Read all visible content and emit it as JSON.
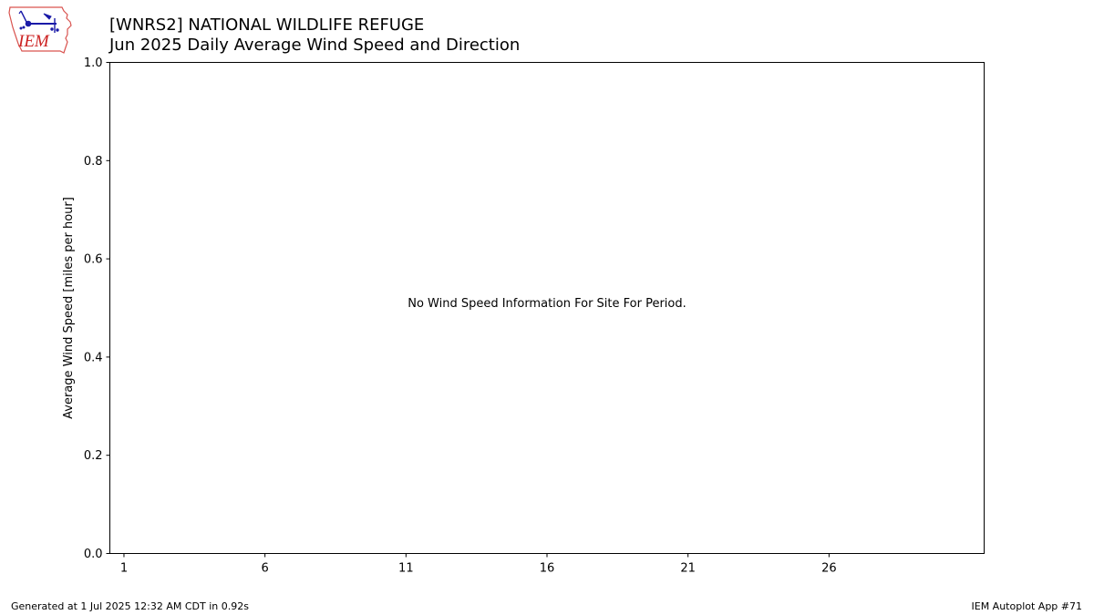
{
  "header": {
    "title": "[WNRS2] NATIONAL WILDLIFE REFUGE",
    "subtitle": "Jun 2025 Daily Average Wind Speed and Direction"
  },
  "logo": {
    "text": "IEM",
    "icon": "iem-weather-station-logo-icon",
    "colors": {
      "outline": "#d9534f",
      "station": "#1a1aa8",
      "text": "#cc2222"
    }
  },
  "footer": {
    "generated": "Generated at 1 Jul 2025 12:32 AM CDT in 0.92s",
    "app": "IEM Autoplot App #71"
  },
  "chart_data": {
    "type": "bar",
    "title": "[WNRS2] NATIONAL WILDLIFE REFUGE",
    "subtitle": "Jun 2025 Daily Average Wind Speed and Direction",
    "xlabel": "",
    "ylabel": "Average Wind Speed [miles per hour]",
    "xlim": [
      0.5,
      31.5
    ],
    "ylim": [
      0,
      1
    ],
    "x_ticks": [
      1,
      6,
      11,
      16,
      21,
      26
    ],
    "y_ticks": [
      0.0,
      0.2,
      0.4,
      0.6,
      0.8,
      1.0
    ],
    "y_tick_labels": [
      "0.0",
      "0.2",
      "0.4",
      "0.6",
      "0.8",
      "1.0"
    ],
    "annotation": "No Wind Speed Information For Site For Period.",
    "series": [],
    "grid": false
  }
}
